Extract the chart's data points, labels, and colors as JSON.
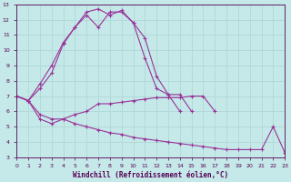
{
  "xlabel": "Windchill (Refroidissement éolien,°C)",
  "xlim": [
    0,
    23
  ],
  "ylim": [
    3,
    13
  ],
  "yticks": [
    3,
    4,
    5,
    6,
    7,
    8,
    9,
    10,
    11,
    12,
    13
  ],
  "xticks": [
    0,
    1,
    2,
    3,
    4,
    5,
    6,
    7,
    8,
    9,
    10,
    11,
    12,
    13,
    14,
    15,
    16,
    17,
    18,
    19,
    20,
    21,
    22,
    23
  ],
  "bg_color": "#c5e8e8",
  "grid_color": "#b0d8d8",
  "line_color": "#993399",
  "lines": [
    {
      "x": [
        0,
        1,
        2,
        3,
        4,
        5,
        6,
        7,
        8,
        9,
        10,
        11,
        12,
        13,
        14,
        15,
        16,
        17,
        18,
        19,
        20
      ],
      "y": [
        7.0,
        6.7,
        7.8,
        9.0,
        10.5,
        11.5,
        12.5,
        12.7,
        12.3,
        12.6,
        11.8,
        9.5,
        7.5,
        7.1,
        6.0,
        null,
        null,
        null,
        null,
        null,
        null
      ],
      "style": "-",
      "marker": "+"
    },
    {
      "x": [
        0,
        1,
        2,
        3,
        4,
        5,
        6,
        7,
        8,
        9,
        10,
        11,
        12,
        13,
        14,
        15,
        16,
        17,
        18,
        19,
        20
      ],
      "y": [
        7.0,
        6.7,
        7.5,
        8.5,
        10.4,
        11.5,
        12.3,
        11.5,
        12.5,
        12.5,
        11.8,
        10.8,
        8.3,
        7.1,
        7.1,
        6.0,
        null,
        null,
        null,
        null,
        null
      ],
      "style": "-",
      "marker": "+"
    },
    {
      "x": [
        0,
        1,
        2,
        3,
        4,
        5,
        6,
        7,
        8,
        9,
        10,
        11,
        12,
        13,
        14,
        15,
        16,
        17,
        18,
        19,
        20
      ],
      "y": [
        7.0,
        6.7,
        5.5,
        5.2,
        5.5,
        5.8,
        6.0,
        6.5,
        6.5,
        6.6,
        6.7,
        6.8,
        6.9,
        6.9,
        6.9,
        7.0,
        7.0,
        6.0,
        null,
        null,
        null
      ],
      "style": "-",
      "marker": "+"
    },
    {
      "x": [
        0,
        1,
        2,
        3,
        4,
        5,
        6,
        7,
        8,
        9,
        10,
        11,
        12,
        13,
        14,
        15,
        16,
        17,
        18,
        19,
        20,
        21,
        22,
        23
      ],
      "y": [
        7.0,
        6.7,
        5.8,
        5.5,
        5.5,
        5.2,
        5.0,
        4.8,
        4.6,
        4.5,
        4.3,
        4.2,
        4.1,
        4.0,
        3.9,
        3.8,
        3.7,
        3.6,
        3.5,
        3.5,
        3.5,
        3.5,
        5.0,
        3.3
      ],
      "style": "-",
      "marker": "+"
    }
  ]
}
